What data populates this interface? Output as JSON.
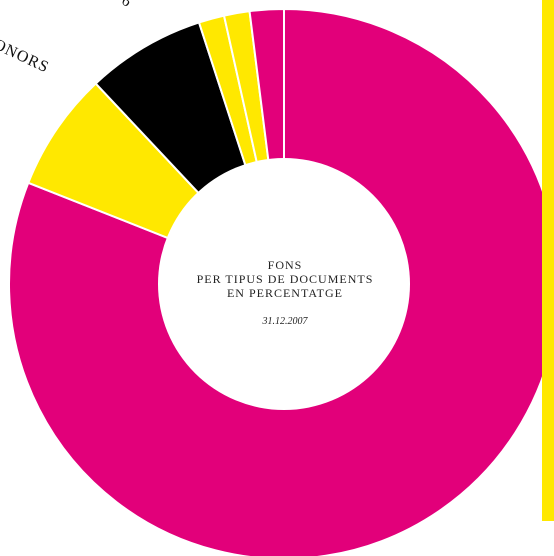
{
  "colors": {
    "magenta": "#e2007a",
    "yellow": "#ffe800",
    "black": "#000000",
    "divider": "#ffffff",
    "center": "#ffffff"
  },
  "center": {
    "title_lines": [
      "FONS",
      "PER TIPUS DE DOCUMENTS",
      "EN PERCENTATGE"
    ],
    "date": "31.12.2007"
  },
  "labels": {
    "donors": "ONORS",
    "partial": "6"
  },
  "chart_data": {
    "type": "donut",
    "title": "FONS PER TIPUS DE DOCUMENTS EN PERCENTATGE",
    "subtitle": "31.12.2007",
    "slices": [
      {
        "value": 81.0,
        "color": "#e2007a"
      },
      {
        "value": 7.0,
        "color": "#ffe800"
      },
      {
        "value": 7.0,
        "color": "#000000"
      },
      {
        "value": 1.5,
        "color": "#ffe800"
      },
      {
        "value": 1.5,
        "color": "#ffe800"
      },
      {
        "value": 2.0,
        "color": "#e2007a"
      }
    ]
  }
}
